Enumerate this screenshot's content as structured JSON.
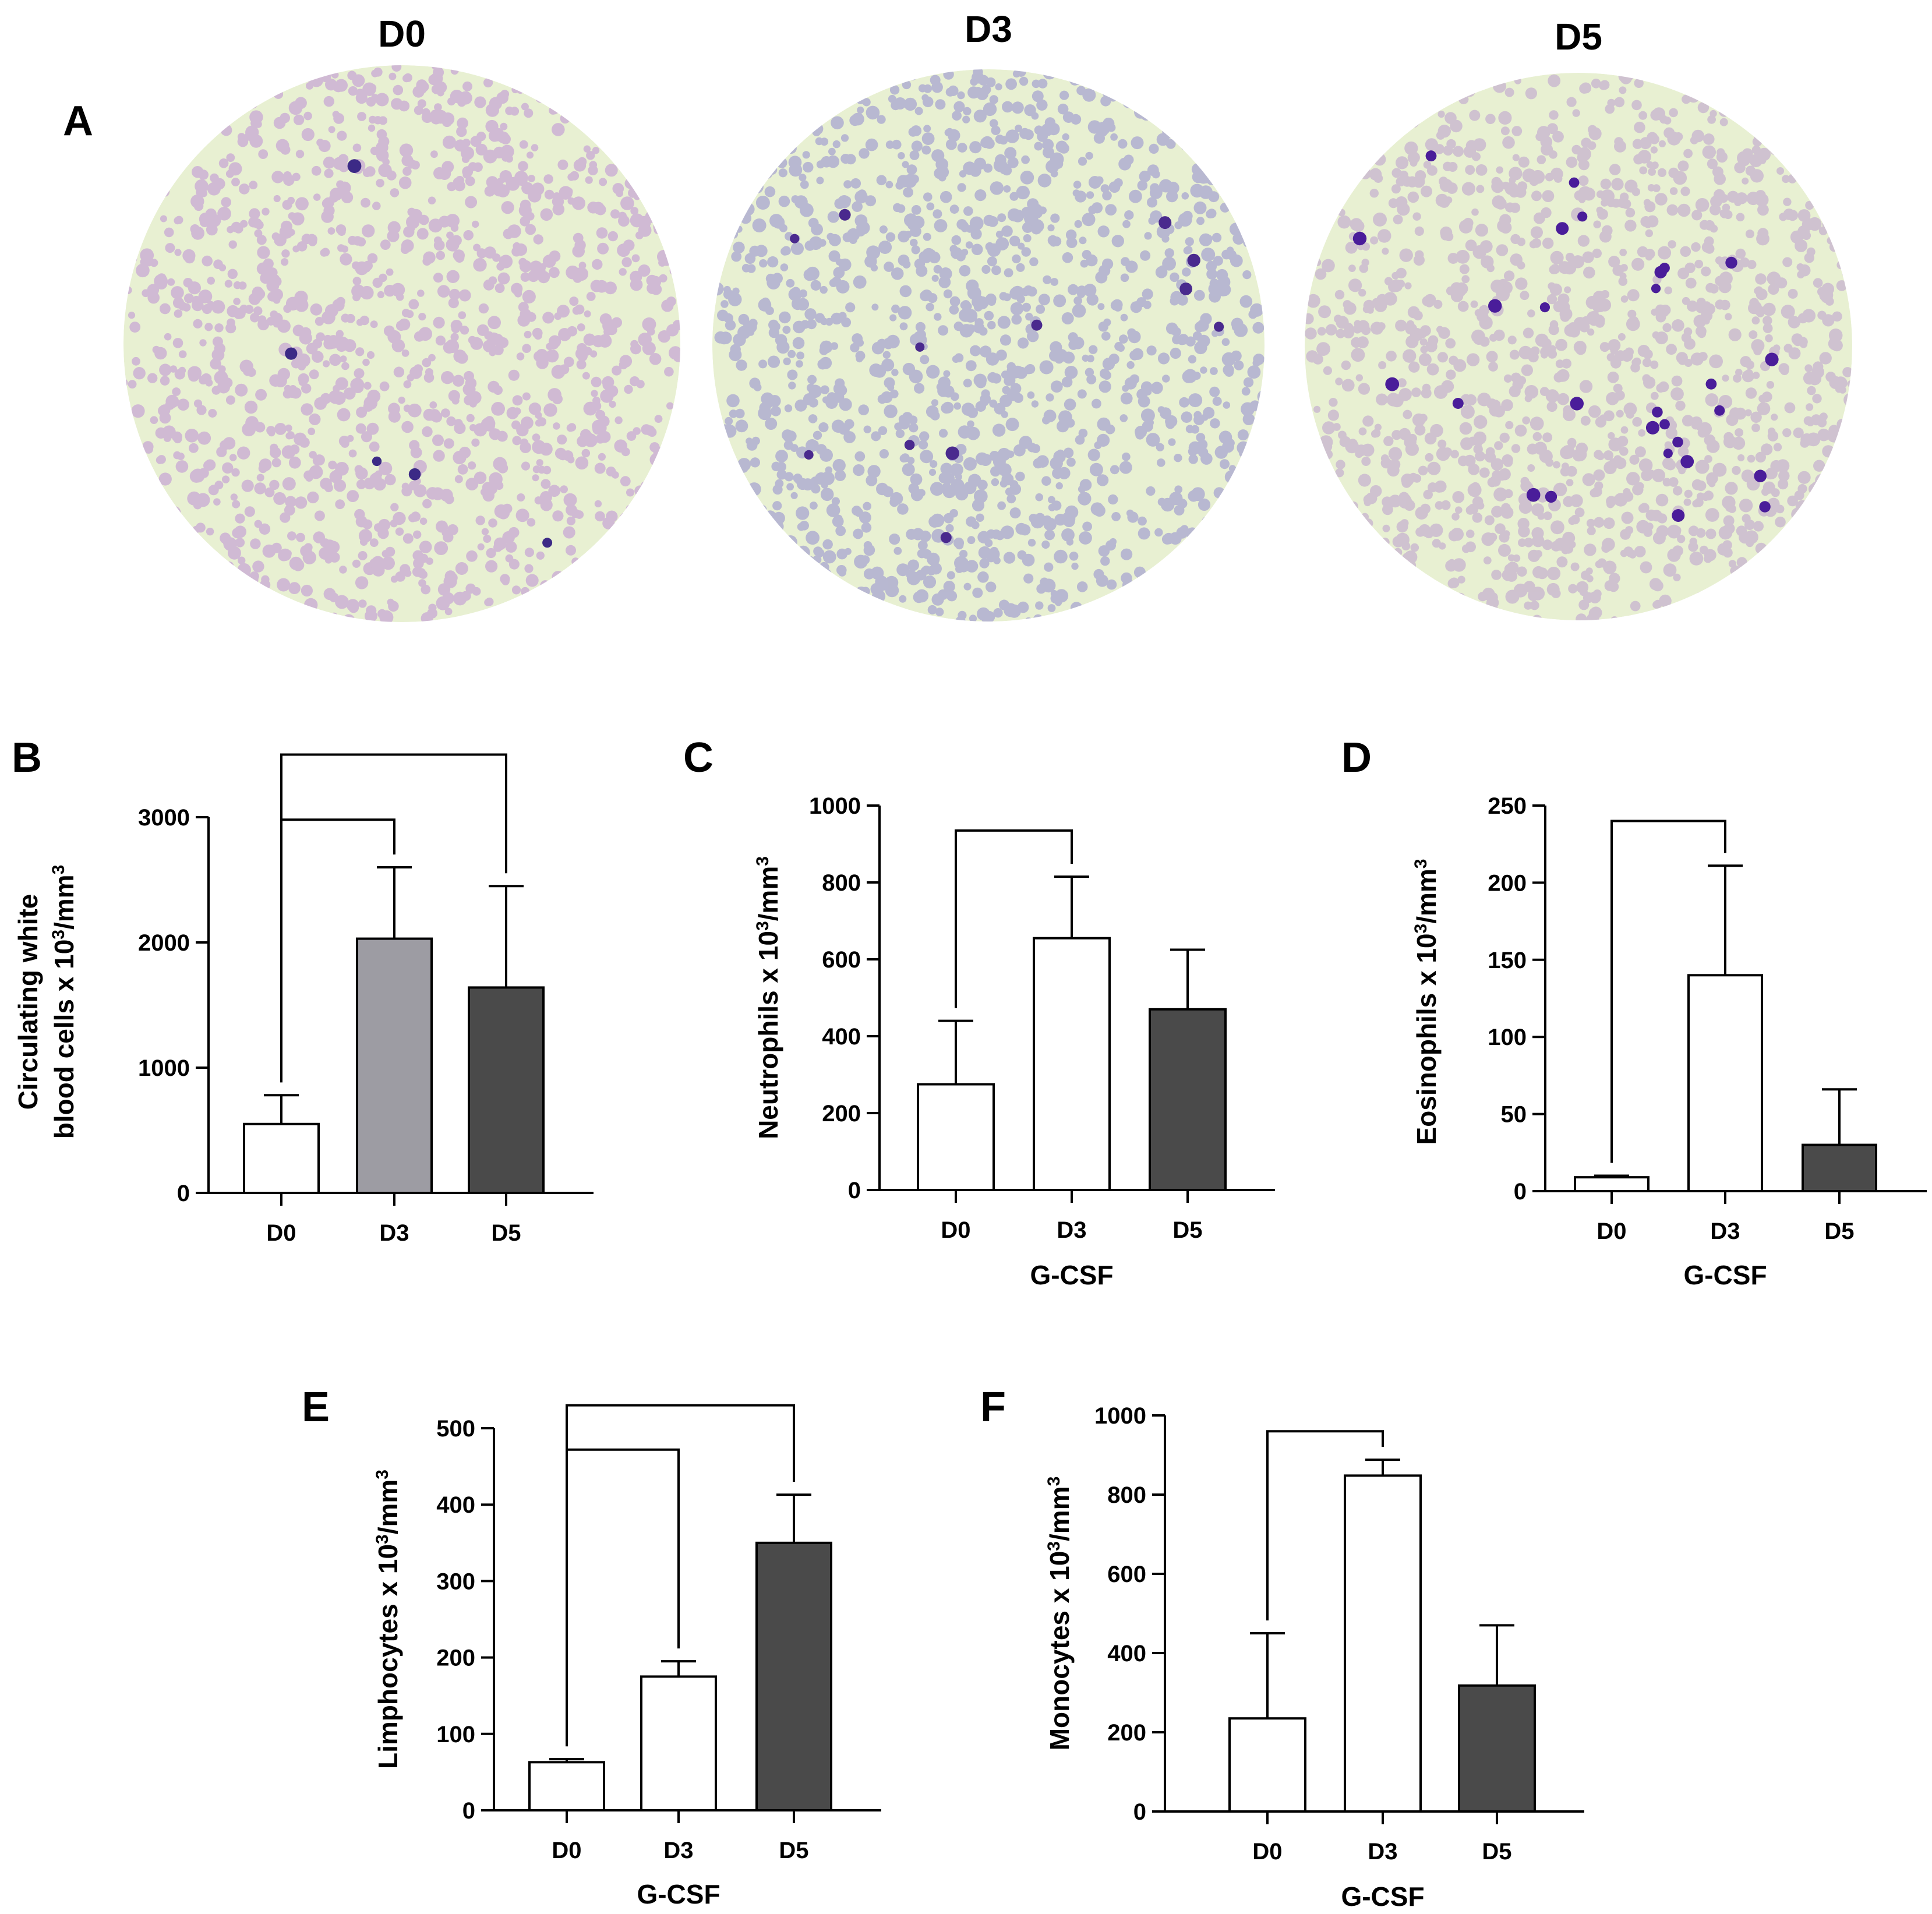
{
  "micrographs": [
    {
      "label": "D0",
      "tint": "#c9a8d4",
      "cell_color": "#3c2a86",
      "cells": 5
    },
    {
      "label": "D3",
      "tint": "#a9a6d0",
      "cell_color": "#4a2a8e",
      "cells": 12
    },
    {
      "label": "D5",
      "tint": "#c7b3cf",
      "cell_color": "#4a1d9a",
      "cells": 28
    }
  ],
  "panel_letters": [
    "A",
    "B",
    "C",
    "D",
    "E",
    "F"
  ],
  "colors": {
    "white": "#ffffff",
    "gray": "#9d9ca3",
    "dark": "#4a4a4a",
    "axis": "#000000"
  },
  "chart_data": [
    {
      "panel": "B",
      "type": "bar",
      "categories": [
        "D0",
        "D3",
        "D5"
      ],
      "values": [
        550,
        2030,
        1640
      ],
      "errors": [
        230,
        570,
        810
      ],
      "fills": [
        "white",
        "gray",
        "dark"
      ],
      "ylim": [
        0,
        3000
      ],
      "yticks": [
        0,
        1000,
        2000,
        3000
      ],
      "ylabel_lines": [
        "Circulating white",
        "blood cells x 10",
        "3",
        "/mm",
        "3"
      ],
      "xlabel": "",
      "brackets": [
        {
          "from": 0,
          "to": 1,
          "y": 2980
        },
        {
          "from": 0,
          "to": 2,
          "y": 3500
        }
      ]
    },
    {
      "panel": "C",
      "type": "bar",
      "categories": [
        "D0",
        "D3",
        "D5"
      ],
      "values": [
        275,
        655,
        470
      ],
      "errors": [
        165,
        160,
        155
      ],
      "fills": [
        "white",
        "white",
        "dark"
      ],
      "ylim": [
        0,
        1000
      ],
      "yticks": [
        0,
        200,
        400,
        600,
        800,
        1000
      ],
      "ylabel_lines": [
        "Neutrophils x 10",
        "3",
        "/mm",
        "3"
      ],
      "xlabel": "G-CSF",
      "brackets": [
        {
          "from": 0,
          "to": 1,
          "y": 935
        }
      ]
    },
    {
      "panel": "D",
      "type": "bar",
      "categories": [
        "D0",
        "D3",
        "D5"
      ],
      "values": [
        9,
        140,
        30
      ],
      "errors": [
        1,
        71,
        36
      ],
      "fills": [
        "white",
        "white",
        "dark"
      ],
      "ylim": [
        0,
        250
      ],
      "yticks": [
        0,
        50,
        100,
        150,
        200,
        250
      ],
      "ylabel_lines": [
        "Eosinophils x 10",
        "3",
        "/mm",
        "3"
      ],
      "xlabel": "G-CSF",
      "brackets": [
        {
          "from": 0,
          "to": 1,
          "y": 240
        }
      ]
    },
    {
      "panel": "E",
      "type": "bar",
      "categories": [
        "D0",
        "D3",
        "D5"
      ],
      "values": [
        63,
        175,
        350
      ],
      "errors": [
        4,
        20,
        63
      ],
      "fills": [
        "white",
        "white",
        "dark"
      ],
      "ylim": [
        0,
        500
      ],
      "yticks": [
        0,
        100,
        200,
        300,
        400,
        500
      ],
      "ylabel_lines": [
        "Limphocytes x 10",
        "3",
        "/mm",
        "3"
      ],
      "xlabel": "G-CSF",
      "brackets": [
        {
          "from": 0,
          "to": 1,
          "y": 472
        },
        {
          "from": 0,
          "to": 2,
          "y": 530
        }
      ]
    },
    {
      "panel": "F",
      "type": "bar",
      "categories": [
        "D0",
        "D3",
        "D5"
      ],
      "values": [
        235,
        848,
        318
      ],
      "errors": [
        215,
        40,
        152
      ],
      "fills": [
        "white",
        "white",
        "dark"
      ],
      "ylim": [
        0,
        1000
      ],
      "yticks": [
        0,
        200,
        400,
        600,
        800,
        1000
      ],
      "ylabel_lines": [
        "Monocytes x 10",
        "3",
        "/mm",
        "3"
      ],
      "xlabel": "G-CSF",
      "brackets": [
        {
          "from": 0,
          "to": 1,
          "y": 960
        }
      ]
    }
  ]
}
